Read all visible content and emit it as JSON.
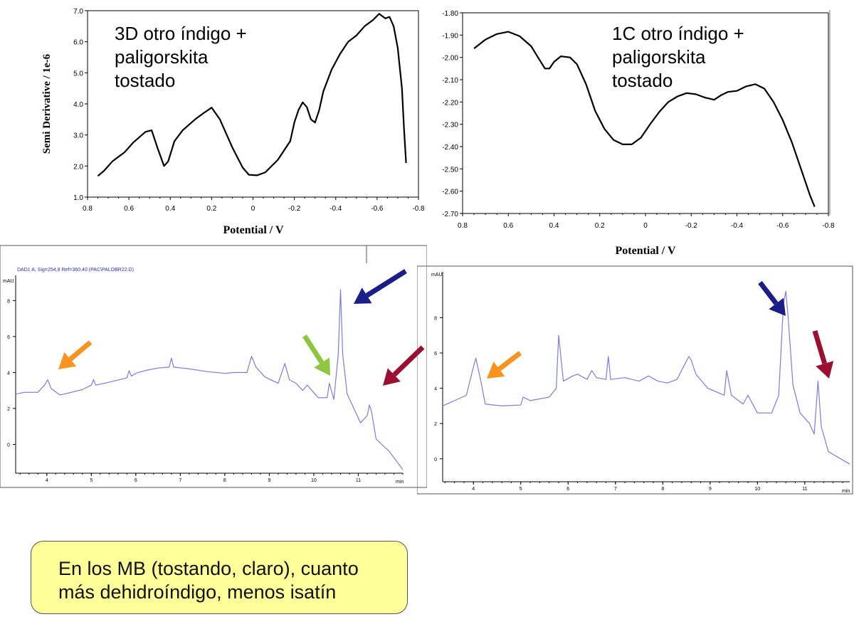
{
  "note": {
    "line1": "En los MB (tostando, claro), cuanto",
    "line2": "más dehidroíndigo, menos isatín"
  },
  "colors": {
    "arrow_orange": "#f7931e",
    "arrow_green": "#8dc63f",
    "arrow_blue": "#1b1e87",
    "arrow_red": "#9b1030",
    "chromatogram_line": "#7b7be8",
    "curve": "#000000"
  },
  "chart_data": [
    {
      "type": "line",
      "panel": "voltammogram-left",
      "annotation": [
        "3D otro índigo +",
        "paligorskita",
        "tostado"
      ],
      "ylabel": "Semi Derivative / 1e-6",
      "xlabel": "Potential / V",
      "xticks": [
        "0.8",
        "0.6",
        "0.4",
        "0.2",
        "0",
        "-0.2",
        "-0.4",
        "-0.6",
        "-0.8"
      ],
      "yticks": [
        "1.0",
        "2.0",
        "3.0",
        "4.0",
        "5.0",
        "6.0",
        "7.0"
      ],
      "xlim": [
        0.8,
        -0.8
      ],
      "ylim": [
        1.0,
        7.0
      ],
      "x": [
        0.75,
        0.72,
        0.68,
        0.62,
        0.58,
        0.52,
        0.49,
        0.46,
        0.43,
        0.41,
        0.38,
        0.34,
        0.28,
        0.24,
        0.2,
        0.16,
        0.1,
        0.05,
        0.02,
        -0.02,
        -0.06,
        -0.12,
        -0.18,
        -0.2,
        -0.22,
        -0.24,
        -0.26,
        -0.28,
        -0.3,
        -0.32,
        -0.34,
        -0.38,
        -0.42,
        -0.46,
        -0.5,
        -0.54,
        -0.58,
        -0.61,
        -0.62,
        -0.64,
        -0.66,
        -0.68,
        -0.7,
        -0.72,
        -0.73,
        -0.74
      ],
      "y": [
        1.68,
        1.85,
        2.15,
        2.45,
        2.75,
        3.1,
        3.15,
        2.55,
        2.0,
        2.15,
        2.8,
        3.15,
        3.5,
        3.7,
        3.88,
        3.5,
        2.6,
        1.95,
        1.72,
        1.7,
        1.8,
        2.2,
        2.8,
        3.4,
        3.8,
        4.05,
        3.9,
        3.5,
        3.4,
        3.8,
        4.4,
        5.1,
        5.6,
        6.0,
        6.2,
        6.5,
        6.7,
        6.9,
        6.85,
        6.75,
        6.8,
        6.5,
        5.8,
        4.5,
        3.2,
        2.1
      ]
    },
    {
      "type": "line",
      "panel": "voltammogram-right",
      "annotation": [
        "1C otro índigo +",
        "paligorskita",
        "tostado"
      ],
      "xlabel": "Potential / V",
      "xticks": [
        "0.8",
        "0.6",
        "0.4",
        "0.2",
        "0",
        "-0.2",
        "-0.4",
        "-0.6",
        "-0.8"
      ],
      "yticks": [
        "-1.80",
        "-1.90",
        "-2.00",
        "-2.10",
        "-2.20",
        "-2.30",
        "-2.40",
        "-2.50",
        "-2.60",
        "-2.70"
      ],
      "xlim": [
        0.8,
        -0.8
      ],
      "ylim": [
        -2.7,
        -1.8
      ],
      "x": [
        0.75,
        0.7,
        0.65,
        0.6,
        0.55,
        0.5,
        0.47,
        0.44,
        0.42,
        0.4,
        0.37,
        0.33,
        0.3,
        0.26,
        0.22,
        0.18,
        0.14,
        0.1,
        0.06,
        0.02,
        -0.02,
        -0.06,
        -0.1,
        -0.14,
        -0.18,
        -0.22,
        -0.26,
        -0.3,
        -0.33,
        -0.36,
        -0.4,
        -0.44,
        -0.48,
        -0.52,
        -0.56,
        -0.6,
        -0.64,
        -0.68,
        -0.72,
        -0.74
      ],
      "y": [
        -1.96,
        -1.92,
        -1.895,
        -1.885,
        -1.905,
        -1.95,
        -2.0,
        -2.05,
        -2.05,
        -2.02,
        -1.995,
        -2.0,
        -2.03,
        -2.12,
        -2.24,
        -2.32,
        -2.37,
        -2.39,
        -2.39,
        -2.36,
        -2.3,
        -2.245,
        -2.2,
        -2.175,
        -2.16,
        -2.165,
        -2.18,
        -2.19,
        -2.17,
        -2.155,
        -2.15,
        -2.13,
        -2.12,
        -2.14,
        -2.2,
        -2.28,
        -2.38,
        -2.5,
        -2.62,
        -2.67
      ]
    },
    {
      "type": "line",
      "panel": "chromatogram-left",
      "header": "DAD1 A, Sig=254,8 Ref=360,40 (PAC\\PALOBR22.D)",
      "yunit": "mAU",
      "xunit": "min",
      "xticks": [
        "4",
        "5",
        "6",
        "7",
        "8",
        "9",
        "10",
        "11"
      ],
      "yticks": [
        "0",
        "2",
        "4",
        "6",
        "8"
      ],
      "xlim": [
        3.3,
        12.0
      ],
      "ylim": [
        -1.6,
        9.4
      ],
      "x": [
        3.3,
        3.5,
        3.8,
        3.95,
        4.02,
        4.1,
        4.3,
        4.8,
        5.0,
        5.05,
        5.1,
        5.3,
        5.8,
        5.85,
        5.9,
        6.0,
        6.2,
        6.5,
        6.75,
        6.8,
        6.85,
        7.2,
        7.6,
        8.0,
        8.2,
        8.5,
        8.6,
        8.7,
        8.9,
        9.2,
        9.35,
        9.45,
        9.6,
        9.75,
        9.85,
        10.1,
        10.3,
        10.35,
        10.45,
        10.55,
        10.6,
        10.65,
        10.75,
        10.9,
        11.05,
        11.2,
        11.25,
        11.3,
        11.4,
        11.7,
        12.0
      ],
      "y": [
        2.8,
        2.9,
        2.9,
        3.3,
        3.6,
        3.1,
        2.75,
        3.05,
        3.3,
        3.6,
        3.3,
        3.4,
        3.7,
        4.1,
        3.8,
        3.95,
        4.1,
        4.25,
        4.3,
        4.8,
        4.3,
        4.2,
        4.05,
        3.95,
        4.0,
        4.0,
        4.9,
        4.3,
        3.75,
        3.4,
        4.5,
        3.6,
        3.4,
        3.0,
        3.3,
        2.6,
        2.6,
        3.4,
        2.5,
        5.0,
        8.6,
        5.0,
        2.8,
        2.0,
        1.2,
        1.6,
        2.2,
        1.8,
        0.3,
        -0.4,
        -1.4
      ]
    },
    {
      "type": "line",
      "panel": "chromatogram-right",
      "yunit": "mAU",
      "xunit": "min",
      "xticks": [
        "4",
        "5",
        "6",
        "7",
        "8",
        "9",
        "10",
        "11"
      ],
      "yticks": [
        "0",
        "2",
        "4",
        "6",
        "8"
      ],
      "xlim": [
        3.35,
        11.95
      ],
      "ylim": [
        -1.3,
        10.6
      ],
      "x": [
        3.35,
        3.6,
        3.85,
        4.0,
        4.05,
        4.15,
        4.25,
        4.6,
        5.0,
        5.05,
        5.2,
        5.6,
        5.75,
        5.8,
        5.9,
        6.1,
        6.2,
        6.4,
        6.5,
        6.6,
        6.8,
        6.85,
        6.9,
        7.2,
        7.5,
        7.7,
        7.9,
        8.1,
        8.3,
        8.55,
        8.6,
        8.7,
        8.95,
        9.3,
        9.35,
        9.45,
        9.7,
        9.8,
        10.0,
        10.3,
        10.45,
        10.55,
        10.6,
        10.65,
        10.75,
        10.9,
        11.1,
        11.2,
        11.28,
        11.35,
        11.5,
        11.95
      ],
      "y": [
        3.0,
        3.3,
        3.6,
        5.2,
        5.7,
        4.5,
        3.1,
        3.0,
        3.05,
        3.5,
        3.3,
        3.5,
        4.0,
        7.0,
        4.4,
        4.7,
        4.8,
        4.5,
        5.0,
        4.6,
        4.5,
        5.8,
        4.5,
        4.6,
        4.4,
        4.7,
        4.4,
        4.3,
        4.5,
        5.8,
        5.6,
        4.8,
        4.0,
        3.6,
        5.0,
        3.6,
        3.1,
        3.6,
        2.6,
        2.6,
        3.6,
        8.8,
        9.5,
        8.0,
        4.2,
        2.6,
        2.0,
        1.4,
        4.4,
        1.8,
        0.4,
        -0.3
      ]
    }
  ]
}
